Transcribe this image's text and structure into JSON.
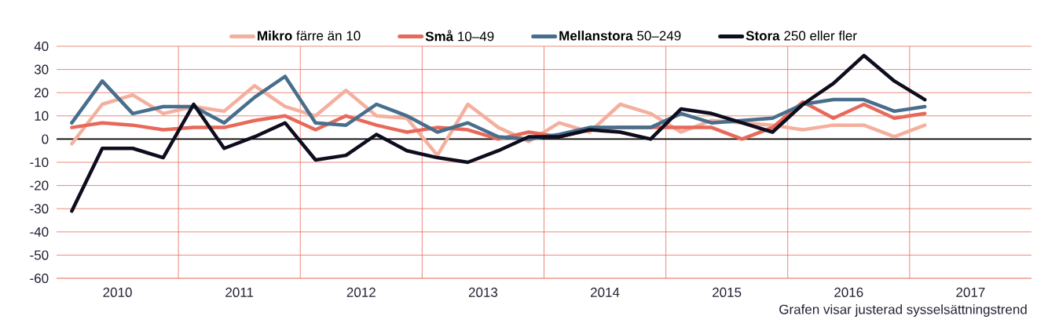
{
  "chart_data": {
    "type": "line",
    "x": [
      2010.125,
      2010.375,
      2010.625,
      2010.875,
      2011.125,
      2011.375,
      2011.625,
      2011.875,
      2012.125,
      2012.375,
      2012.625,
      2012.875,
      2013.125,
      2013.375,
      2013.625,
      2013.875,
      2014.125,
      2014.375,
      2014.625,
      2014.875,
      2015.125,
      2015.375,
      2015.625,
      2015.875,
      2016.125,
      2016.375,
      2016.625,
      2016.875,
      2017.125
    ],
    "series": [
      {
        "name": "**Mikro** färre än 10",
        "color": "#f4b09e",
        "values": [
          -2,
          15,
          19,
          11,
          14,
          12,
          23,
          14,
          10,
          21,
          10,
          9,
          -7,
          15,
          5,
          -1,
          7,
          3,
          15,
          11,
          3,
          8,
          7,
          6,
          4,
          6,
          6,
          1,
          6
        ]
      },
      {
        "name": "**Små** 10–49",
        "color": "#e8695a",
        "values": [
          5,
          7,
          6,
          4,
          5,
          5,
          8,
          10,
          4,
          10,
          6,
          3,
          5,
          4,
          0,
          3,
          1,
          4,
          5,
          5,
          5,
          5,
          0,
          5,
          16,
          9,
          15,
          9,
          11
        ]
      },
      {
        "name": "**Mellanstora** 50–249",
        "color": "#476e8c",
        "values": [
          7,
          25,
          11,
          14,
          14,
          7,
          18,
          27,
          7,
          6,
          15,
          10,
          3,
          7,
          1,
          0,
          2,
          5,
          5,
          5,
          11,
          7,
          8,
          9,
          15,
          17,
          17,
          12,
          14
        ]
      },
      {
        "name": "**Stora** 250 eller fler",
        "color": "#0d0d1e",
        "values": [
          -31,
          -4,
          -4,
          -8,
          15,
          -4,
          1,
          7,
          -9,
          -7,
          2,
          -5,
          -8,
          -10,
          -5,
          1,
          1,
          4,
          3,
          0,
          13,
          11,
          7,
          3,
          15,
          24,
          36,
          25,
          17
        ]
      }
    ],
    "xlim": [
      2010,
      2018
    ],
    "xticks": [
      {
        "value": 2010.5,
        "label": "2010"
      },
      {
        "value": 2011,
        "label": null
      },
      {
        "value": 2011.5,
        "label": "2011"
      },
      {
        "value": 2012,
        "label": null
      },
      {
        "value": 2012.5,
        "label": "2012"
      },
      {
        "value": 2013,
        "label": null
      },
      {
        "value": 2013.5,
        "label": "2013"
      },
      {
        "value": 2014,
        "label": null
      },
      {
        "value": 2014.5,
        "label": "2014"
      },
      {
        "value": 2015,
        "label": null
      },
      {
        "value": 2015.5,
        "label": "2015"
      },
      {
        "value": 2016,
        "label": null
      },
      {
        "value": 2016.5,
        "label": "2016"
      },
      {
        "value": 2017,
        "label": null
      },
      {
        "value": 2017.5,
        "label": "2017"
      }
    ],
    "ylim": [
      -60,
      40
    ],
    "yticks": [
      -60,
      -50,
      -40,
      -30,
      -20,
      -10,
      0,
      10,
      20,
      30,
      40
    ],
    "grid": true,
    "legend": "top",
    "marker": "none",
    "line_style": "solid",
    "ref_lines": [
      {
        "axis": "y",
        "value": 0,
        "color": "#000000"
      }
    ],
    "annotations": [
      "Grafen visar justerad sysselsättningstrend"
    ]
  }
}
